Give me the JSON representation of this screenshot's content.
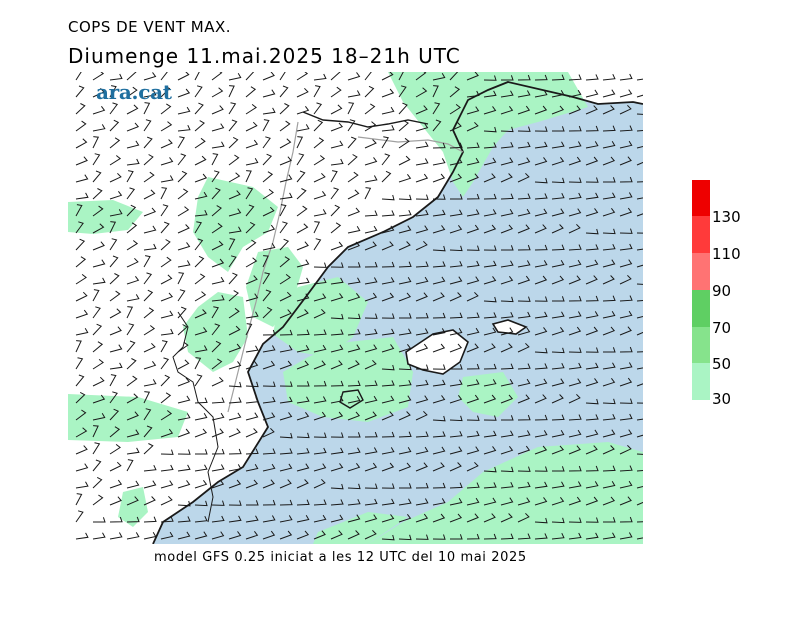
{
  "title": "COPS DE VENT MAX.",
  "subtitle": "Diumenge  11.mai.2025  18–21h  UTC",
  "logo": "ara.cat",
  "footer": "model GFS 0.25 iniciat a les 12 UTC del 10 mai 2025",
  "colors": {
    "sea": "#bcd7ea",
    "land": "#ffffff",
    "coast": "#1a1a1a",
    "border": "#a0a0a0",
    "wind_barb": "#1a1a1a",
    "band_30": "#aaf4c4",
    "band_50": "#86e38c",
    "band_70": "#5fcf63",
    "band_90": "#ff7373",
    "band_110": "#ff3a3a",
    "band_130": "#ee0000",
    "logo": "#1f6f9f"
  },
  "legend": {
    "labels": [
      "30",
      "50",
      "70",
      "90",
      "110",
      "130"
    ],
    "bands": [
      {
        "from": 30,
        "to": 50,
        "color": "#aaf4c4"
      },
      {
        "from": 50,
        "to": 70,
        "color": "#86e38c"
      },
      {
        "from": 70,
        "to": 90,
        "color": "#5fcf63"
      },
      {
        "from": 90,
        "to": 110,
        "color": "#ff7373"
      },
      {
        "from": 110,
        "to": 130,
        "color": "#ff3a3a"
      },
      {
        "from": 130,
        "to": 150,
        "color": "#ee0000"
      }
    ]
  }
}
